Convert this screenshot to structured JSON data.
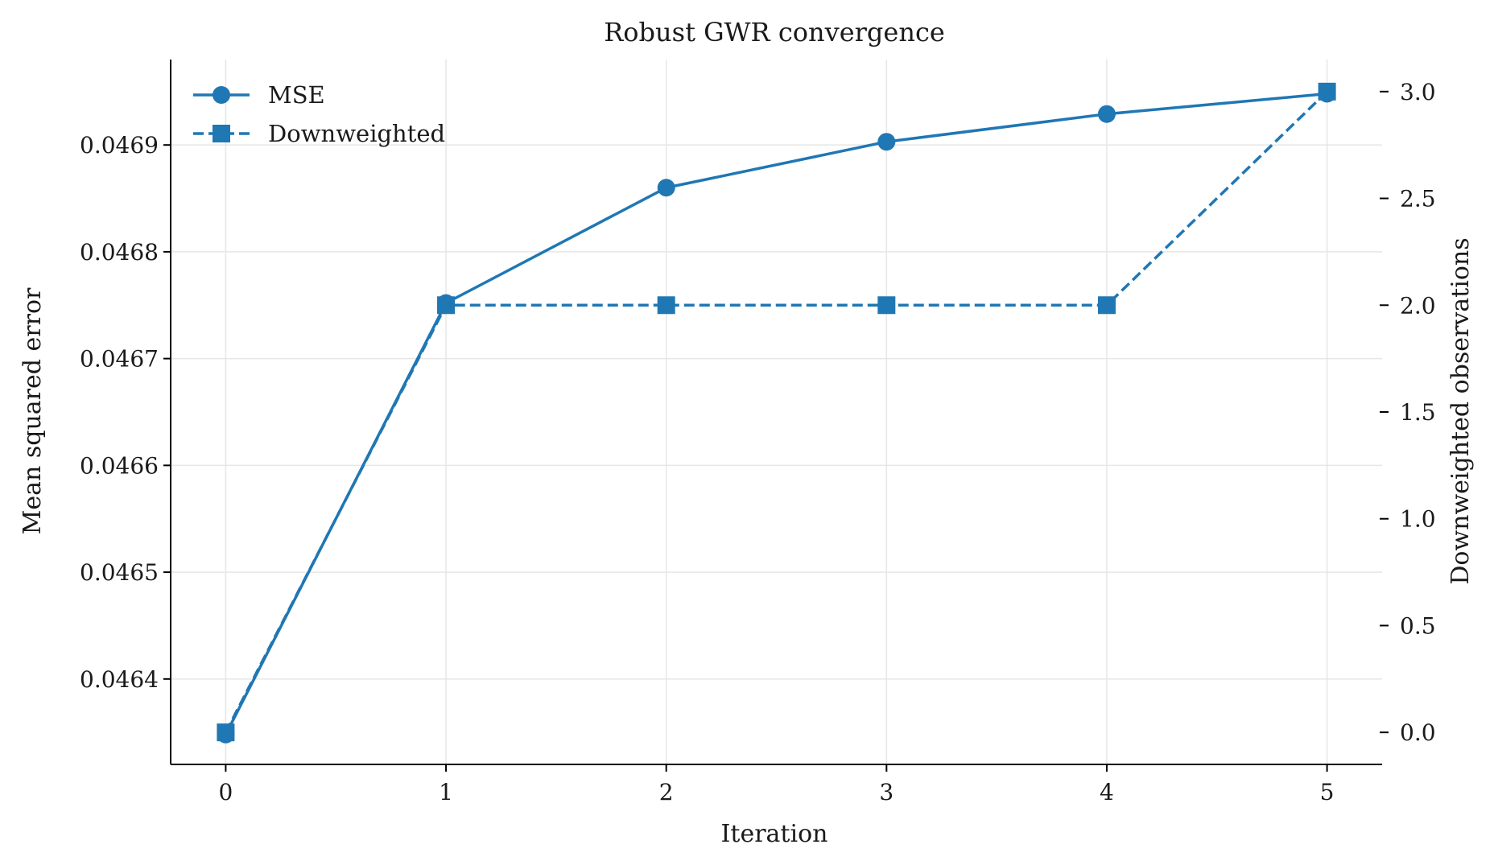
{
  "chart_data": {
    "type": "line",
    "title": "Robust GWR convergence",
    "xlabel": "Iteration",
    "ylabel": "Mean squared error",
    "y2label": "Downweighted observations",
    "x": [
      0,
      1,
      2,
      3,
      4,
      5
    ],
    "x_ticks": [
      "0",
      "1",
      "2",
      "3",
      "4",
      "5"
    ],
    "xlim": [
      -0.25,
      5.25
    ],
    "ylim": [
      0.04632,
      0.04698
    ],
    "y2lim": [
      -0.15,
      3.15
    ],
    "y_ticks": [
      {
        "value": 0.0464,
        "label": "0.0464"
      },
      {
        "value": 0.0465,
        "label": "0.0465"
      },
      {
        "value": 0.0466,
        "label": "0.0466"
      },
      {
        "value": 0.0467,
        "label": "0.0467"
      },
      {
        "value": 0.0468,
        "label": "0.0468"
      },
      {
        "value": 0.0469,
        "label": "0.0469"
      }
    ],
    "y2_ticks": [
      {
        "value": 0.0,
        "label": "0.0"
      },
      {
        "value": 0.5,
        "label": "0.5"
      },
      {
        "value": 1.0,
        "label": "1.0"
      },
      {
        "value": 1.5,
        "label": "1.5"
      },
      {
        "value": 2.0,
        "label": "2.0"
      },
      {
        "value": 2.5,
        "label": "2.5"
      },
      {
        "value": 3.0,
        "label": "3.0"
      }
    ],
    "grid": true,
    "legend_position": "top-left",
    "series": [
      {
        "name": "MSE",
        "axis": "left",
        "marker": "circle",
        "line": "solid",
        "color": "#1f77b4",
        "values": [
          0.046348,
          0.046752,
          0.04686,
          0.046903,
          0.046929,
          0.046948
        ]
      },
      {
        "name": "Downweighted",
        "axis": "right",
        "marker": "square",
        "line": "dashed",
        "color": "#1f77b4",
        "values": [
          0,
          2,
          2,
          2,
          2,
          3
        ]
      }
    ]
  }
}
